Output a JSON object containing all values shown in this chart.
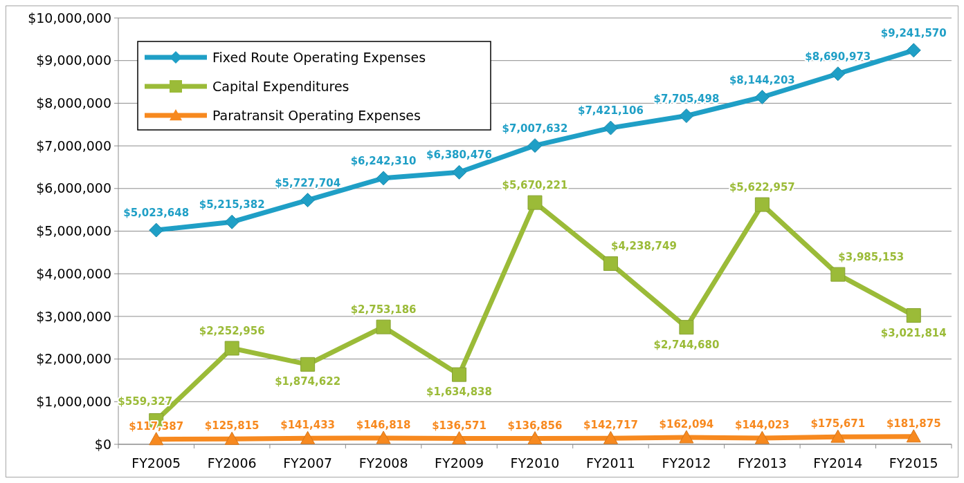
{
  "chart_data": {
    "type": "line",
    "categories": [
      "FY2005",
      "FY2006",
      "FY2007",
      "FY2008",
      "FY2009",
      "FY2010",
      "FY2011",
      "FY2012",
      "FY2013",
      "FY2014",
      "FY2015"
    ],
    "series": [
      {
        "name": "Fixed Route Operating Expenses",
        "color": "#1f9fc6",
        "marker": "diamond",
        "values": [
          5023648,
          5215382,
          5727704,
          6242310,
          6380476,
          7007632,
          7421106,
          7705498,
          8144203,
          8690973,
          9241570
        ],
        "value_labels": [
          "$5,023,648",
          "$5,215,382",
          "$5,727,704",
          "$6,242,310",
          "$6,380,476",
          "$7,007,632",
          "$7,421,106",
          "$7,705,498",
          "$8,144,203",
          "$8,690,973",
          "$9,241,570"
        ]
      },
      {
        "name": "Capital Expenditures",
        "color": "#9bbb38",
        "marker": "square",
        "values": [
          559327,
          2252956,
          1874622,
          2753186,
          1634838,
          5670221,
          4238749,
          2744680,
          5622957,
          3985153,
          3021814
        ],
        "value_labels": [
          "$559,327",
          "$2,252,956",
          "$1,874,622",
          "$2,753,186",
          "$1,634,838",
          "$5,670,221",
          "$4,238,749",
          "$2,744,680",
          "$5,622,957",
          "$3,985,153",
          "$3,021,814"
        ]
      },
      {
        "name": "Paratransit Operating Expenses",
        "color": "#f7891f",
        "marker": "triangle",
        "values": [
          117387,
          125815,
          141433,
          146818,
          136571,
          136856,
          142717,
          162094,
          144023,
          175671,
          181875
        ],
        "value_labels": [
          "$117,387",
          "$125,815",
          "$141,433",
          "$146,818",
          "$136,571",
          "$136,856",
          "$142,717",
          "$162,094",
          "$144,023",
          "$175,671",
          "$181,875"
        ]
      }
    ],
    "ylim": [
      0,
      10000000
    ],
    "yticks": [
      {
        "value": 0,
        "label": "$0"
      },
      {
        "value": 1000000,
        "label": "$1,000,000"
      },
      {
        "value": 2000000,
        "label": "$2,000,000"
      },
      {
        "value": 3000000,
        "label": "$3,000,000"
      },
      {
        "value": 4000000,
        "label": "$4,000,000"
      },
      {
        "value": 5000000,
        "label": "$5,000,000"
      },
      {
        "value": 6000000,
        "label": "$6,000,000"
      },
      {
        "value": 7000000,
        "label": "$7,000,000"
      },
      {
        "value": 8000000,
        "label": "$8,000,000"
      },
      {
        "value": 9000000,
        "label": "$9,000,000"
      },
      {
        "value": 10000000,
        "label": "$10,000,000"
      }
    ],
    "grid": "y",
    "legend": "top left"
  }
}
